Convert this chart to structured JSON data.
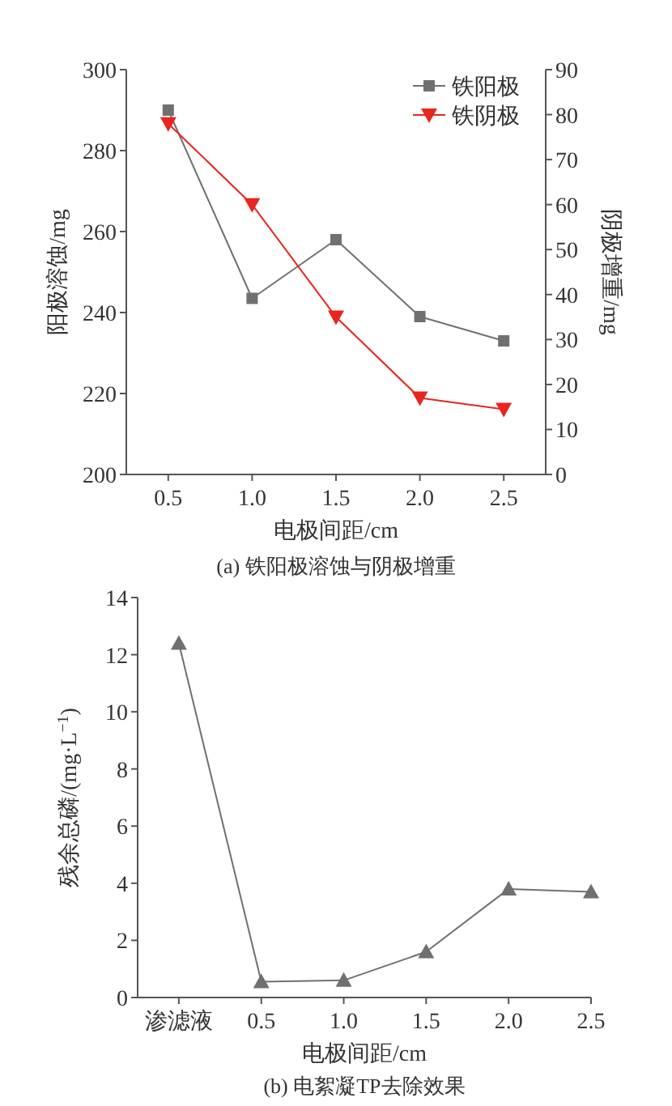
{
  "chart_data": [
    {
      "type": "line",
      "title": "(a) 铁阳极溶蚀与阴极增重",
      "xlabel": "电极间距/cm",
      "ylabel": "阳极溶蚀/mg",
      "y2label": "阴极增重/mg",
      "categories": [
        "0.5",
        "1.0",
        "1.5",
        "2.0",
        "2.5"
      ],
      "series": [
        {
          "name": "铁阳极",
          "color": "#707070",
          "marker": "square",
          "values": [
            290,
            243.5,
            258,
            239,
            233
          ]
        },
        {
          "name": "铁阴极",
          "color": "#e8251f",
          "marker": "triangle-down",
          "axis": "y2",
          "values": [
            78,
            60,
            35,
            17,
            14.5
          ]
        }
      ],
      "ylim": [
        200,
        300
      ],
      "yticks": [
        200,
        220,
        240,
        260,
        280,
        300
      ],
      "y2lim": [
        0,
        90
      ],
      "y2ticks": [
        0,
        10,
        20,
        30,
        40,
        50,
        60,
        70,
        80,
        90
      ],
      "legend": "top right"
    },
    {
      "type": "line",
      "title": "(b) 电絮凝TP去除效果",
      "xlabel": "电极间距/cm",
      "ylabel": "残余总磷/(mg·L$^{−1}$)",
      "categories": [
        "渗滤液",
        "0.5",
        "1.0",
        "1.5",
        "2.0",
        "2.5"
      ],
      "series": [
        {
          "color": "#707070",
          "marker": "triangle",
          "values": [
            12.4,
            0.55,
            0.6,
            1.6,
            3.8,
            3.7
          ]
        }
      ],
      "ylim": [
        0,
        14
      ],
      "yticks": [
        0,
        2,
        4,
        6,
        8,
        10,
        12,
        14
      ]
    }
  ]
}
